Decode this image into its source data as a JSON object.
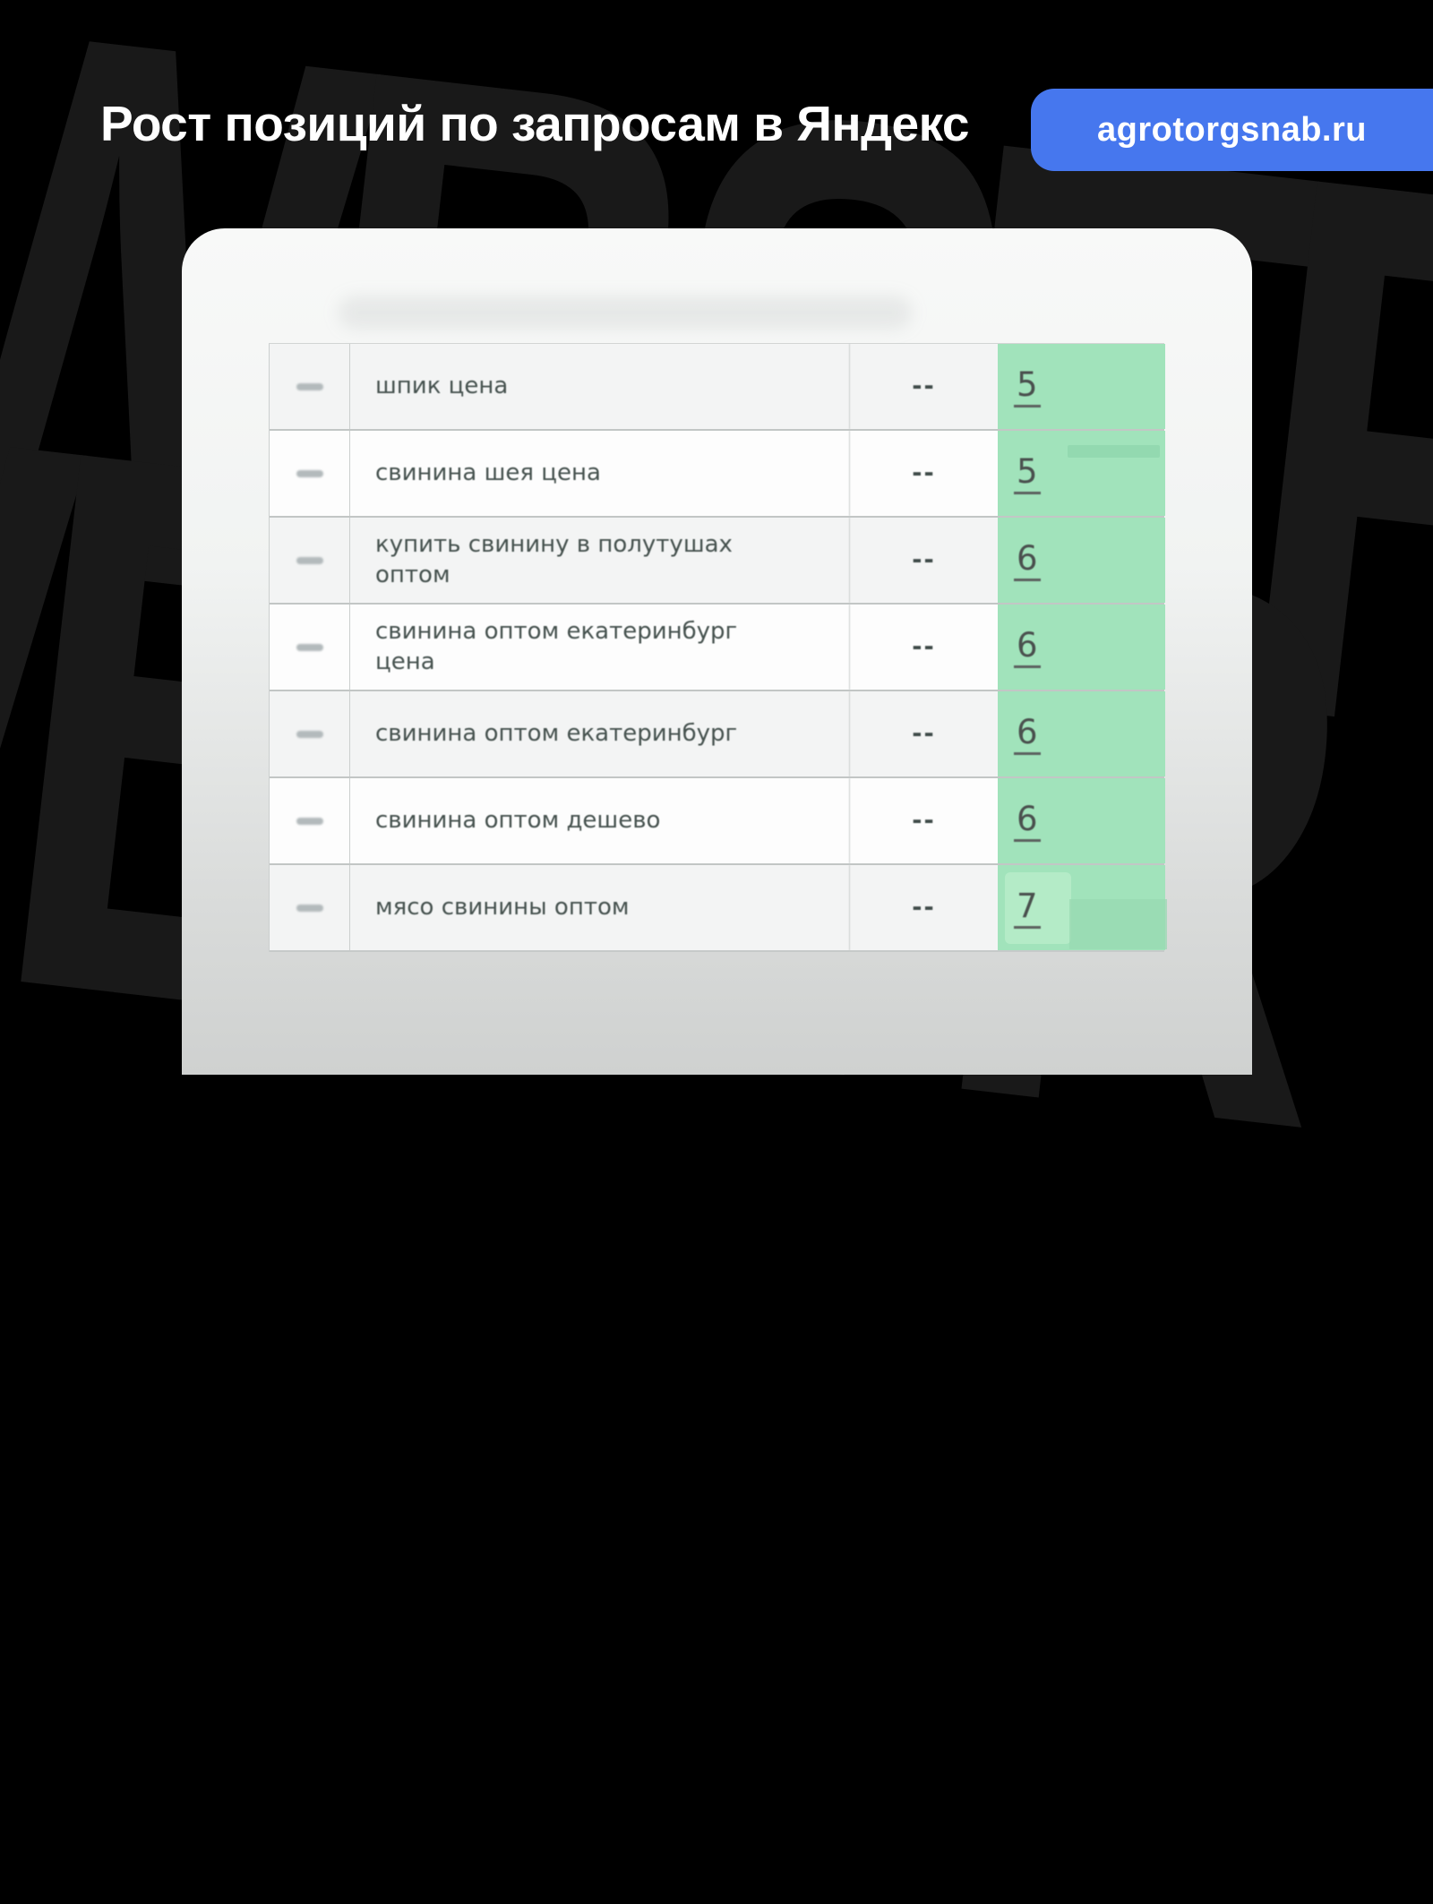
{
  "header": {
    "title": "Рост позиций по запросам в Яндекс",
    "badge": "agrotorgsnab.ru"
  },
  "watermark": {
    "line1": "WBSTR",
    "line2": "WBSTR"
  },
  "colors": {
    "badge_blue": "#4677ee",
    "position_green": "#a1e3bb",
    "background": "#000000"
  },
  "table": {
    "rows": [
      {
        "query": "шпик цена",
        "change": "--",
        "position": "5"
      },
      {
        "query": "свинина шея цена",
        "change": "--",
        "position": "5"
      },
      {
        "query": "купить свинину в полутушах оптом",
        "change": "--",
        "position": "6"
      },
      {
        "query": "свинина оптом екатеринбург цена",
        "change": "--",
        "position": "6"
      },
      {
        "query": "свинина оптом екатеринбург",
        "change": "--",
        "position": "6"
      },
      {
        "query": "свинина оптом дешево",
        "change": "--",
        "position": "6"
      },
      {
        "query": "мясо свинины оптом",
        "change": "--",
        "position": "7"
      }
    ]
  }
}
